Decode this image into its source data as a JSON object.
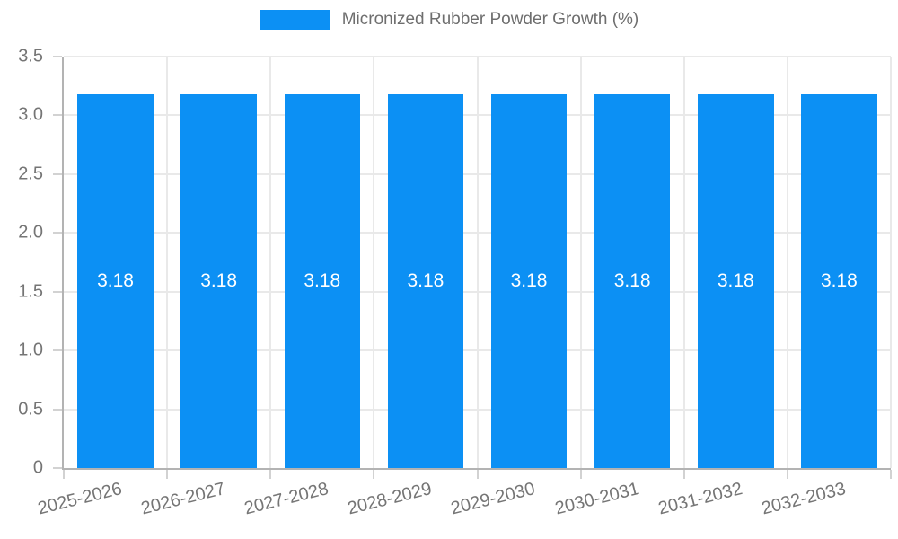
{
  "chart_data": {
    "type": "bar",
    "title": "Micronized Rubber Powder Growth (%)",
    "legend": {
      "position": "top",
      "items": [
        {
          "label": "Micronized Rubber Powder Growth (%)",
          "color": "#0c90f4"
        }
      ]
    },
    "categories": [
      "2025-2026",
      "2026-2027",
      "2027-2028",
      "2028-2029",
      "2029-2030",
      "2030-2031",
      "2031-2032",
      "2032-2033"
    ],
    "series": [
      {
        "name": "Micronized Rubber Powder Growth (%)",
        "values": [
          3.18,
          3.18,
          3.18,
          3.18,
          3.18,
          3.18,
          3.18,
          3.18
        ]
      }
    ],
    "bar_value_labels": [
      "3.18",
      "3.18",
      "3.18",
      "3.18",
      "3.18",
      "3.18",
      "3.18",
      "3.18"
    ],
    "xlabel": "",
    "ylabel": "",
    "ylim": [
      0,
      3.5
    ],
    "yticks": [
      {
        "value": 0,
        "label": "0"
      },
      {
        "value": 0.5,
        "label": "0.5"
      },
      {
        "value": 1,
        "label": "1.0"
      },
      {
        "value": 1.5,
        "label": "1.5"
      },
      {
        "value": 2,
        "label": "2.0"
      },
      {
        "value": 2.5,
        "label": "2.5"
      },
      {
        "value": 3,
        "label": "3.0"
      },
      {
        "value": 3.5,
        "label": "3.5"
      }
    ],
    "grid": {
      "horizontal": true,
      "vertical": true
    },
    "x_label_rotation_deg": -14,
    "colors": {
      "bar": "#0c90f4",
      "bar_label_text": "#ffffff",
      "axis_line": "#b3b3b3",
      "grid_line": "#e9e9e9",
      "tick_mark": "#d2d2d2",
      "tick_text": "#757575",
      "legend_text": "#6e6e6e",
      "background": "#ffffff"
    }
  }
}
